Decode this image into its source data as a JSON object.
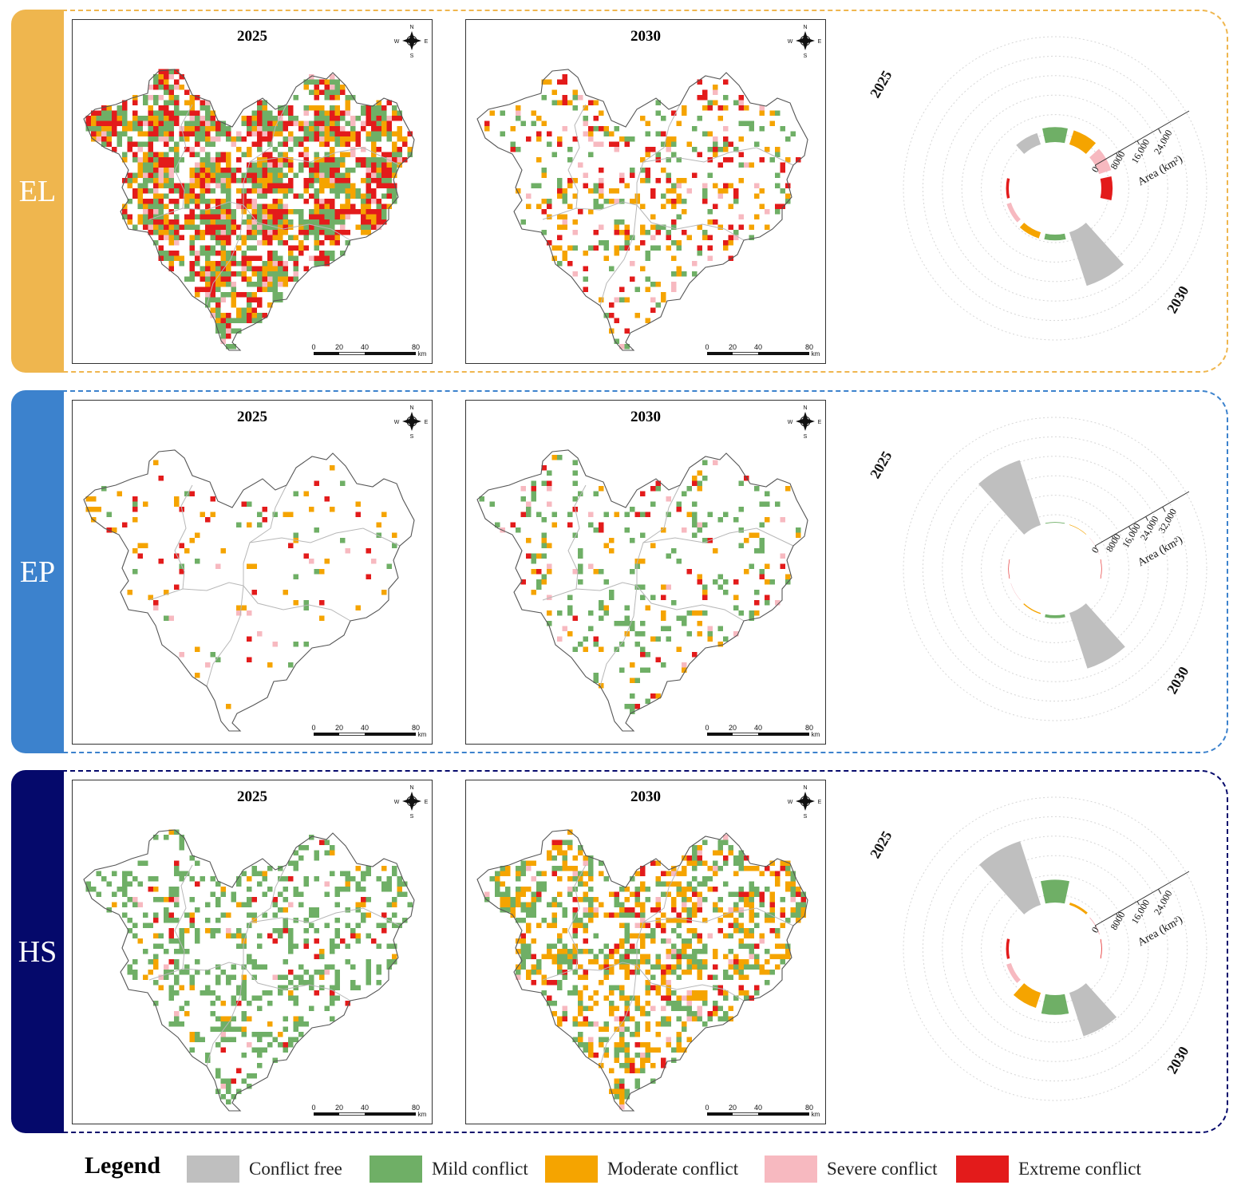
{
  "colors": {
    "conflict_free": "#bfbfbf",
    "mild": "#6faf66",
    "moderate": "#f5a400",
    "severe": "#f7b9c0",
    "extreme": "#e31b1b"
  },
  "scale_bar": {
    "ticks": [
      "0",
      "20",
      "40",
      "80"
    ],
    "unit": "km"
  },
  "compass": {
    "n": "N",
    "s": "S",
    "e": "E",
    "w": "W"
  },
  "rose_axis": {
    "label": "Area (km²)",
    "top_label": "2025",
    "bottom_label": "2030"
  },
  "panels": [
    {
      "id": "EL",
      "label": "EL",
      "tab_color": "#efb64e",
      "border_color": "#efb64e",
      "maps": [
        {
          "year": "2025",
          "density": 0.78,
          "mix": {
            "mild": 0.38,
            "moderate": 0.22,
            "severe": 0.08,
            "extreme": 0.32
          }
        },
        {
          "year": "2030",
          "density": 0.24,
          "mix": {
            "mild": 0.3,
            "moderate": 0.35,
            "severe": 0.1,
            "extreme": 0.25
          }
        }
      ],
      "rose": {
        "ticks": [
          "0",
          "8000",
          "16,000",
          "24,000"
        ],
        "axis_max": 32000,
        "values_2025": {
          "conflict_free": 3900,
          "mild": 4900,
          "moderate": 4800,
          "severe": 4200,
          "extreme": 3700
        },
        "values_2030": {
          "conflict_free": 18500,
          "mild": 1900,
          "moderate": 2100,
          "severe": 1500,
          "extreme": 900
        }
      }
    },
    {
      "id": "EP",
      "label": "EP",
      "tab_color": "#3c82cd",
      "border_color": "#3c82cd",
      "maps": [
        {
          "year": "2025",
          "density": 0.07,
          "mix": {
            "mild": 0.3,
            "moderate": 0.35,
            "severe": 0.1,
            "extreme": 0.25
          }
        },
        {
          "year": "2030",
          "density": 0.16,
          "mix": {
            "mild": 0.55,
            "moderate": 0.25,
            "severe": 0.08,
            "extreme": 0.12
          }
        }
      ],
      "rose": {
        "ticks": [
          "0",
          "8000",
          "16,000",
          "24,000",
          "32,000"
        ],
        "axis_max": 40000,
        "values_2025": {
          "conflict_free": 28000,
          "mild": 300,
          "moderate": 200,
          "severe": 120,
          "extreme": 200
        },
        "values_2030": {
          "conflict_free": 24000,
          "mild": 1200,
          "moderate": 450,
          "severe": 130,
          "extreme": 200
        }
      }
    },
    {
      "id": "HS",
      "label": "HS",
      "tab_color": "#05096b",
      "border_color": "#05096b",
      "maps": [
        {
          "year": "2025",
          "density": 0.3,
          "mix": {
            "mild": 0.82,
            "moderate": 0.08,
            "severe": 0.03,
            "extreme": 0.07
          }
        },
        {
          "year": "2030",
          "density": 0.48,
          "mix": {
            "mild": 0.42,
            "moderate": 0.43,
            "severe": 0.05,
            "extreme": 0.1
          }
        }
      ],
      "rose": {
        "ticks": [
          "0",
          "8000",
          "16,000",
          "24,000"
        ],
        "axis_max": 32000,
        "values_2025": {
          "conflict_free": 22000,
          "mild": 7500,
          "moderate": 800,
          "severe": 250,
          "extreme": 200
        },
        "values_2030": {
          "conflict_free": 15000,
          "mild": 6500,
          "moderate": 5200,
          "severe": 1600,
          "extreme": 900
        }
      }
    }
  ],
  "legend": {
    "title": "Legend",
    "items": [
      {
        "key": "conflict_free",
        "label": "Conflict free"
      },
      {
        "key": "mild",
        "label": "Mild conflict"
      },
      {
        "key": "moderate",
        "label": "Moderate conflict"
      },
      {
        "key": "severe",
        "label": "Severe conflict"
      },
      {
        "key": "extreme",
        "label": "Extreme conflict"
      }
    ]
  }
}
